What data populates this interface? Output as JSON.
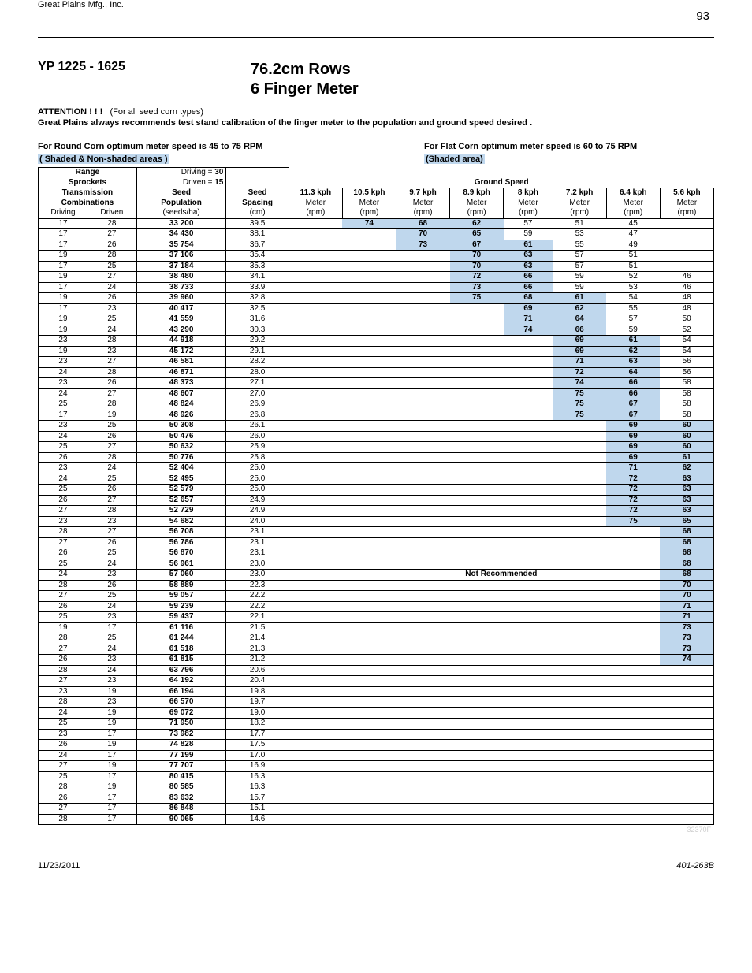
{
  "meta": {
    "company": "Great Plains Mfg., Inc.",
    "page_number": "93",
    "model": "YP 1225 - 1625",
    "title_line1": "76.2cm Rows",
    "title_line2": "6 Finger Meter",
    "attention_bold": "ATTENTION ! ! !",
    "attention_rest": "(For all seed corn types)",
    "calibration": "Great Plains always recommends test stand calibration of the finger meter to the population and ground speed desired .",
    "opt_left": "For Round Corn optimum meter speed is 45 to 75 RPM",
    "shaded_left": "( Shaded  &  Non-shaded areas )",
    "opt_right": "For Flat Corn optimum meter speed is 60 to 75 RPM",
    "shaded_right": "(Shaded area)",
    "footnote": "32370F",
    "footer_date": "11/23/2011",
    "footer_doc": "401-263B"
  },
  "header": {
    "range": "Range",
    "sprockets": "Sprockets",
    "transmission": "Transmission",
    "combinations": "Combinations",
    "driving_eq": "Driving = ",
    "driving_val": "30",
    "driven_eq": "Driven = ",
    "driven_val": "15",
    "seed": "Seed",
    "population": "Population",
    "spacing": "Spacing",
    "driving": "Driving",
    "driven": "Driven",
    "seeds_ha": "(seeds/ha)",
    "cm": "(cm)",
    "ground_speed": "Ground Speed",
    "meter": "Meter",
    "rpm": "(rpm)",
    "speeds": [
      "11.3 kph",
      "10.5 kph",
      "9.7 kph",
      "8.9 kph",
      "8 kph",
      "7.2 kph",
      "6.4 kph",
      "5.6 kph"
    ],
    "not_recommended": "Not Recommended"
  },
  "colors": {
    "shade": "#bfd7ed"
  },
  "rows": [
    {
      "dg": "17",
      "dn": "28",
      "pop": "33 200",
      "sp": "39.5",
      "r": [
        "",
        "74",
        "68",
        "62",
        "57",
        "51",
        "45",
        ""
      ],
      "sh": [
        0,
        1,
        1,
        1,
        0,
        0,
        0,
        0
      ]
    },
    {
      "dg": "17",
      "dn": "27",
      "pop": "34 430",
      "sp": "38.1",
      "r": [
        "",
        "",
        "70",
        "65",
        "59",
        "53",
        "47",
        ""
      ],
      "sh": [
        0,
        0,
        1,
        1,
        0,
        0,
        0,
        0
      ]
    },
    {
      "dg": "17",
      "dn": "26",
      "pop": "35 754",
      "sp": "36.7",
      "r": [
        "",
        "",
        "73",
        "67",
        "61",
        "55",
        "49",
        ""
      ],
      "sh": [
        0,
        0,
        1,
        1,
        1,
        0,
        0,
        0
      ]
    },
    {
      "dg": "19",
      "dn": "28",
      "pop": "37 106",
      "sp": "35.4",
      "r": [
        "",
        "",
        "",
        "70",
        "63",
        "57",
        "51",
        ""
      ],
      "sh": [
        0,
        0,
        0,
        1,
        1,
        0,
        0,
        0
      ]
    },
    {
      "dg": "17",
      "dn": "25",
      "pop": "37 184",
      "sp": "35.3",
      "r": [
        "",
        "",
        "",
        "70",
        "63",
        "57",
        "51",
        ""
      ],
      "sh": [
        0,
        0,
        0,
        1,
        1,
        0,
        0,
        0
      ]
    },
    {
      "dg": "19",
      "dn": "27",
      "pop": "38 480",
      "sp": "34.1",
      "r": [
        "",
        "",
        "",
        "72",
        "66",
        "59",
        "52",
        "46"
      ],
      "sh": [
        0,
        0,
        0,
        1,
        1,
        0,
        0,
        0
      ]
    },
    {
      "dg": "17",
      "dn": "24",
      "pop": "38 733",
      "sp": "33.9",
      "r": [
        "",
        "",
        "",
        "73",
        "66",
        "59",
        "53",
        "46"
      ],
      "sh": [
        0,
        0,
        0,
        1,
        1,
        0,
        0,
        0
      ]
    },
    {
      "dg": "19",
      "dn": "26",
      "pop": "39 960",
      "sp": "32.8",
      "r": [
        "",
        "",
        "",
        "75",
        "68",
        "61",
        "54",
        "48"
      ],
      "sh": [
        0,
        0,
        0,
        1,
        1,
        1,
        0,
        0
      ]
    },
    {
      "dg": "17",
      "dn": "23",
      "pop": "40 417",
      "sp": "32.5",
      "r": [
        "",
        "",
        "",
        "",
        "69",
        "62",
        "55",
        "48"
      ],
      "sh": [
        0,
        0,
        0,
        0,
        1,
        1,
        0,
        0
      ]
    },
    {
      "dg": "19",
      "dn": "25",
      "pop": "41 559",
      "sp": "31.6",
      "r": [
        "",
        "",
        "",
        "",
        "71",
        "64",
        "57",
        "50"
      ],
      "sh": [
        0,
        0,
        0,
        0,
        1,
        1,
        0,
        0
      ]
    },
    {
      "dg": "19",
      "dn": "24",
      "pop": "43 290",
      "sp": "30.3",
      "r": [
        "",
        "",
        "",
        "",
        "74",
        "66",
        "59",
        "52"
      ],
      "sh": [
        0,
        0,
        0,
        0,
        1,
        1,
        0,
        0
      ]
    },
    {
      "dg": "23",
      "dn": "28",
      "pop": "44 918",
      "sp": "29.2",
      "r": [
        "",
        "",
        "",
        "",
        "",
        "69",
        "61",
        "54"
      ],
      "sh": [
        0,
        0,
        0,
        0,
        0,
        1,
        1,
        0
      ]
    },
    {
      "dg": "19",
      "dn": "23",
      "pop": "45 172",
      "sp": "29.1",
      "r": [
        "",
        "",
        "",
        "",
        "",
        "69",
        "62",
        "54"
      ],
      "sh": [
        0,
        0,
        0,
        0,
        0,
        1,
        1,
        0
      ]
    },
    {
      "dg": "23",
      "dn": "27",
      "pop": "46 581",
      "sp": "28.2",
      "r": [
        "",
        "",
        "",
        "",
        "",
        "71",
        "63",
        "56"
      ],
      "sh": [
        0,
        0,
        0,
        0,
        0,
        1,
        1,
        0
      ]
    },
    {
      "dg": "24",
      "dn": "28",
      "pop": "46 871",
      "sp": "28.0",
      "r": [
        "",
        "",
        "",
        "",
        "",
        "72",
        "64",
        "56"
      ],
      "sh": [
        0,
        0,
        0,
        0,
        0,
        1,
        1,
        0
      ]
    },
    {
      "dg": "23",
      "dn": "26",
      "pop": "48 373",
      "sp": "27.1",
      "r": [
        "",
        "",
        "",
        "",
        "",
        "74",
        "66",
        "58"
      ],
      "sh": [
        0,
        0,
        0,
        0,
        0,
        1,
        1,
        0
      ]
    },
    {
      "dg": "24",
      "dn": "27",
      "pop": "48 607",
      "sp": "27.0",
      "r": [
        "",
        "",
        "",
        "",
        "",
        "75",
        "66",
        "58"
      ],
      "sh": [
        0,
        0,
        0,
        0,
        0,
        1,
        1,
        0
      ]
    },
    {
      "dg": "25",
      "dn": "28",
      "pop": "48 824",
      "sp": "26.9",
      "r": [
        "",
        "",
        "",
        "",
        "",
        "75",
        "67",
        "58"
      ],
      "sh": [
        0,
        0,
        0,
        0,
        0,
        1,
        1,
        0
      ]
    },
    {
      "dg": "17",
      "dn": "19",
      "pop": "48 926",
      "sp": "26.8",
      "r": [
        "",
        "",
        "",
        "",
        "",
        "75",
        "67",
        "58"
      ],
      "sh": [
        0,
        0,
        0,
        0,
        0,
        1,
        1,
        0
      ]
    },
    {
      "dg": "23",
      "dn": "25",
      "pop": "50 308",
      "sp": "26.1",
      "r": [
        "",
        "",
        "",
        "",
        "",
        "",
        "69",
        "60"
      ],
      "sh": [
        0,
        0,
        0,
        0,
        0,
        0,
        1,
        1
      ]
    },
    {
      "dg": "24",
      "dn": "26",
      "pop": "50 476",
      "sp": "26.0",
      "r": [
        "",
        "",
        "",
        "",
        "",
        "",
        "69",
        "60"
      ],
      "sh": [
        0,
        0,
        0,
        0,
        0,
        0,
        1,
        1
      ]
    },
    {
      "dg": "25",
      "dn": "27",
      "pop": "50 632",
      "sp": "25.9",
      "r": [
        "",
        "",
        "",
        "",
        "",
        "",
        "69",
        "60"
      ],
      "sh": [
        0,
        0,
        0,
        0,
        0,
        0,
        1,
        1
      ]
    },
    {
      "dg": "26",
      "dn": "28",
      "pop": "50 776",
      "sp": "25.8",
      "r": [
        "",
        "",
        "",
        "",
        "",
        "",
        "69",
        "61"
      ],
      "sh": [
        0,
        0,
        0,
        0,
        0,
        0,
        1,
        1
      ]
    },
    {
      "dg": "23",
      "dn": "24",
      "pop": "52 404",
      "sp": "25.0",
      "r": [
        "",
        "",
        "",
        "",
        "",
        "",
        "71",
        "62"
      ],
      "sh": [
        0,
        0,
        0,
        0,
        0,
        0,
        1,
        1
      ]
    },
    {
      "dg": "24",
      "dn": "25",
      "pop": "52 495",
      "sp": "25.0",
      "r": [
        "",
        "",
        "",
        "",
        "",
        "",
        "72",
        "63"
      ],
      "sh": [
        0,
        0,
        0,
        0,
        0,
        0,
        1,
        1
      ]
    },
    {
      "dg": "25",
      "dn": "26",
      "pop": "52 579",
      "sp": "25.0",
      "r": [
        "",
        "",
        "",
        "",
        "",
        "",
        "72",
        "63"
      ],
      "sh": [
        0,
        0,
        0,
        0,
        0,
        0,
        1,
        1
      ]
    },
    {
      "dg": "26",
      "dn": "27",
      "pop": "52 657",
      "sp": "24.9",
      "r": [
        "",
        "",
        "",
        "",
        "",
        "",
        "72",
        "63"
      ],
      "sh": [
        0,
        0,
        0,
        0,
        0,
        0,
        1,
        1
      ]
    },
    {
      "dg": "27",
      "dn": "28",
      "pop": "52 729",
      "sp": "24.9",
      "r": [
        "",
        "",
        "",
        "",
        "",
        "",
        "72",
        "63"
      ],
      "sh": [
        0,
        0,
        0,
        0,
        0,
        0,
        1,
        1
      ]
    },
    {
      "dg": "23",
      "dn": "23",
      "pop": "54 682",
      "sp": "24.0",
      "r": [
        "",
        "",
        "",
        "",
        "",
        "",
        "75",
        "65"
      ],
      "sh": [
        0,
        0,
        0,
        0,
        0,
        0,
        1,
        1
      ]
    },
    {
      "dg": "28",
      "dn": "27",
      "pop": "56 708",
      "sp": "23.1",
      "r": [
        "",
        "",
        "",
        "",
        "",
        "",
        "",
        "68"
      ],
      "sh": [
        0,
        0,
        0,
        0,
        0,
        0,
        0,
        1
      ]
    },
    {
      "dg": "27",
      "dn": "26",
      "pop": "56 786",
      "sp": "23.1",
      "r": [
        "",
        "",
        "",
        "",
        "",
        "",
        "",
        "68"
      ],
      "sh": [
        0,
        0,
        0,
        0,
        0,
        0,
        0,
        1
      ]
    },
    {
      "dg": "26",
      "dn": "25",
      "pop": "56 870",
      "sp": "23.1",
      "r": [
        "",
        "",
        "",
        "",
        "",
        "",
        "",
        "68"
      ],
      "sh": [
        0,
        0,
        0,
        0,
        0,
        0,
        0,
        1
      ]
    },
    {
      "dg": "25",
      "dn": "24",
      "pop": "56 961",
      "sp": "23.0",
      "r": [
        "",
        "",
        "",
        "",
        "",
        "",
        "",
        "68"
      ],
      "sh": [
        0,
        0,
        0,
        0,
        0,
        0,
        0,
        1
      ]
    },
    {
      "dg": "24",
      "dn": "23",
      "pop": "57 060",
      "sp": "23.0",
      "r": [
        "",
        "",
        "",
        "",
        "",
        "",
        "",
        "68"
      ],
      "sh": [
        0,
        0,
        0,
        0,
        0,
        0,
        0,
        1
      ],
      "nr": true
    },
    {
      "dg": "28",
      "dn": "26",
      "pop": "58 889",
      "sp": "22.3",
      "r": [
        "",
        "",
        "",
        "",
        "",
        "",
        "",
        "70"
      ],
      "sh": [
        0,
        0,
        0,
        0,
        0,
        0,
        0,
        1
      ]
    },
    {
      "dg": "27",
      "dn": "25",
      "pop": "59 057",
      "sp": "22.2",
      "r": [
        "",
        "",
        "",
        "",
        "",
        "",
        "",
        "70"
      ],
      "sh": [
        0,
        0,
        0,
        0,
        0,
        0,
        0,
        1
      ]
    },
    {
      "dg": "26",
      "dn": "24",
      "pop": "59 239",
      "sp": "22.2",
      "r": [
        "",
        "",
        "",
        "",
        "",
        "",
        "",
        "71"
      ],
      "sh": [
        0,
        0,
        0,
        0,
        0,
        0,
        0,
        1
      ]
    },
    {
      "dg": "25",
      "dn": "23",
      "pop": "59 437",
      "sp": "22.1",
      "r": [
        "",
        "",
        "",
        "",
        "",
        "",
        "",
        "71"
      ],
      "sh": [
        0,
        0,
        0,
        0,
        0,
        0,
        0,
        1
      ]
    },
    {
      "dg": "19",
      "dn": "17",
      "pop": "61 116",
      "sp": "21.5",
      "r": [
        "",
        "",
        "",
        "",
        "",
        "",
        "",
        "73"
      ],
      "sh": [
        0,
        0,
        0,
        0,
        0,
        0,
        0,
        1
      ]
    },
    {
      "dg": "28",
      "dn": "25",
      "pop": "61 244",
      "sp": "21.4",
      "r": [
        "",
        "",
        "",
        "",
        "",
        "",
        "",
        "73"
      ],
      "sh": [
        0,
        0,
        0,
        0,
        0,
        0,
        0,
        1
      ]
    },
    {
      "dg": "27",
      "dn": "24",
      "pop": "61 518",
      "sp": "21.3",
      "r": [
        "",
        "",
        "",
        "",
        "",
        "",
        "",
        "73"
      ],
      "sh": [
        0,
        0,
        0,
        0,
        0,
        0,
        0,
        1
      ]
    },
    {
      "dg": "26",
      "dn": "23",
      "pop": "61 815",
      "sp": "21.2",
      "r": [
        "",
        "",
        "",
        "",
        "",
        "",
        "",
        "74"
      ],
      "sh": [
        0,
        0,
        0,
        0,
        0,
        0,
        0,
        1
      ]
    },
    {
      "dg": "28",
      "dn": "24",
      "pop": "63 796",
      "sp": "20.6",
      "r": [
        "",
        "",
        "",
        "",
        "",
        "",
        "",
        ""
      ],
      "sh": [
        0,
        0,
        0,
        0,
        0,
        0,
        0,
        0
      ]
    },
    {
      "dg": "27",
      "dn": "23",
      "pop": "64 192",
      "sp": "20.4",
      "r": [
        "",
        "",
        "",
        "",
        "",
        "",
        "",
        ""
      ],
      "sh": [
        0,
        0,
        0,
        0,
        0,
        0,
        0,
        0
      ]
    },
    {
      "dg": "23",
      "dn": "19",
      "pop": "66 194",
      "sp": "19.8",
      "r": [
        "",
        "",
        "",
        "",
        "",
        "",
        "",
        ""
      ],
      "sh": [
        0,
        0,
        0,
        0,
        0,
        0,
        0,
        0
      ]
    },
    {
      "dg": "28",
      "dn": "23",
      "pop": "66 570",
      "sp": "19.7",
      "r": [
        "",
        "",
        "",
        "",
        "",
        "",
        "",
        ""
      ],
      "sh": [
        0,
        0,
        0,
        0,
        0,
        0,
        0,
        0
      ]
    },
    {
      "dg": "24",
      "dn": "19",
      "pop": "69 072",
      "sp": "19.0",
      "r": [
        "",
        "",
        "",
        "",
        "",
        "",
        "",
        ""
      ],
      "sh": [
        0,
        0,
        0,
        0,
        0,
        0,
        0,
        0
      ]
    },
    {
      "dg": "25",
      "dn": "19",
      "pop": "71 950",
      "sp": "18.2",
      "r": [
        "",
        "",
        "",
        "",
        "",
        "",
        "",
        ""
      ],
      "sh": [
        0,
        0,
        0,
        0,
        0,
        0,
        0,
        0
      ]
    },
    {
      "dg": "23",
      "dn": "17",
      "pop": "73 982",
      "sp": "17.7",
      "r": [
        "",
        "",
        "",
        "",
        "",
        "",
        "",
        ""
      ],
      "sh": [
        0,
        0,
        0,
        0,
        0,
        0,
        0,
        0
      ]
    },
    {
      "dg": "26",
      "dn": "19",
      "pop": "74 828",
      "sp": "17.5",
      "r": [
        "",
        "",
        "",
        "",
        "",
        "",
        "",
        ""
      ],
      "sh": [
        0,
        0,
        0,
        0,
        0,
        0,
        0,
        0
      ]
    },
    {
      "dg": "24",
      "dn": "17",
      "pop": "77 199",
      "sp": "17.0",
      "r": [
        "",
        "",
        "",
        "",
        "",
        "",
        "",
        ""
      ],
      "sh": [
        0,
        0,
        0,
        0,
        0,
        0,
        0,
        0
      ]
    },
    {
      "dg": "27",
      "dn": "19",
      "pop": "77 707",
      "sp": "16.9",
      "r": [
        "",
        "",
        "",
        "",
        "",
        "",
        "",
        ""
      ],
      "sh": [
        0,
        0,
        0,
        0,
        0,
        0,
        0,
        0
      ]
    },
    {
      "dg": "25",
      "dn": "17",
      "pop": "80 415",
      "sp": "16.3",
      "r": [
        "",
        "",
        "",
        "",
        "",
        "",
        "",
        ""
      ],
      "sh": [
        0,
        0,
        0,
        0,
        0,
        0,
        0,
        0
      ]
    },
    {
      "dg": "28",
      "dn": "19",
      "pop": "80 585",
      "sp": "16.3",
      "r": [
        "",
        "",
        "",
        "",
        "",
        "",
        "",
        ""
      ],
      "sh": [
        0,
        0,
        0,
        0,
        0,
        0,
        0,
        0
      ]
    },
    {
      "dg": "26",
      "dn": "17",
      "pop": "83 632",
      "sp": "15.7",
      "r": [
        "",
        "",
        "",
        "",
        "",
        "",
        "",
        ""
      ],
      "sh": [
        0,
        0,
        0,
        0,
        0,
        0,
        0,
        0
      ]
    },
    {
      "dg": "27",
      "dn": "17",
      "pop": "86 848",
      "sp": "15.1",
      "r": [
        "",
        "",
        "",
        "",
        "",
        "",
        "",
        ""
      ],
      "sh": [
        0,
        0,
        0,
        0,
        0,
        0,
        0,
        0
      ]
    },
    {
      "dg": "28",
      "dn": "17",
      "pop": "90 065",
      "sp": "14.6",
      "r": [
        "",
        "",
        "",
        "",
        "",
        "",
        "",
        ""
      ],
      "sh": [
        0,
        0,
        0,
        0,
        0,
        0,
        0,
        0
      ]
    }
  ]
}
